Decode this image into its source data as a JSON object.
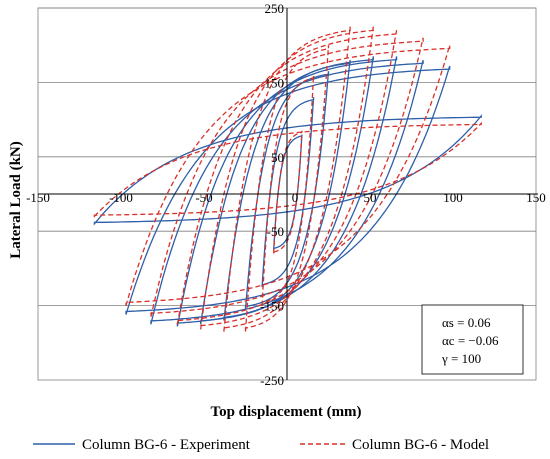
{
  "chart_data": {
    "type": "line",
    "xlabel": "Top displacement (mm)",
    "ylabel": "Lateral Load (kN)",
    "xlim": [
      -150,
      150
    ],
    "ylim": [
      -250,
      250
    ],
    "x_ticks": [
      "-150",
      "-100",
      "-50",
      "0",
      "50",
      "100",
      "150"
    ],
    "y_ticks": [
      "250",
      "150",
      "50",
      "-50",
      "-150",
      "-250"
    ],
    "grid": "horizontal",
    "legend_position": "bottom",
    "series": [
      {
        "name": "Column BG-6 - Experiment",
        "color": "#2e5fa8",
        "style": "solid",
        "cycles": [
          {
            "xmin": -8,
            "xmax": 9,
            "fmin": -75,
            "fmax": 80
          },
          {
            "xmin": -15,
            "xmax": 16,
            "fmin": -125,
            "fmax": 130
          },
          {
            "xmin": -25,
            "xmax": 25,
            "fmin": -155,
            "fmax": 165
          },
          {
            "xmin": -38,
            "xmax": 38,
            "fmin": -170,
            "fmax": 180
          },
          {
            "xmin": -52,
            "xmax": 52,
            "fmin": -175,
            "fmax": 185
          },
          {
            "xmin": -66,
            "xmax": 66,
            "fmin": -178,
            "fmax": 185
          },
          {
            "xmin": -82,
            "xmax": 82,
            "fmin": -175,
            "fmax": 180
          },
          {
            "xmin": -97,
            "xmax": 98,
            "fmin": -162,
            "fmax": 172
          },
          {
            "xmin": -116,
            "xmax": 117,
            "fmin": -40,
            "fmax": 105
          }
        ]
      },
      {
        "name": "Column BG-6 - Model",
        "color": "#d9302a",
        "style": "dashed",
        "cycles": [
          {
            "xmin": -8,
            "xmax": 9,
            "fmin": -80,
            "fmax": 85
          },
          {
            "xmin": -15,
            "xmax": 16,
            "fmin": -150,
            "fmax": 160
          },
          {
            "xmin": -25,
            "xmax": 25,
            "fmin": -185,
            "fmax": 200
          },
          {
            "xmin": -38,
            "xmax": 38,
            "fmin": -185,
            "fmax": 225
          },
          {
            "xmin": -52,
            "xmax": 52,
            "fmin": -182,
            "fmax": 225
          },
          {
            "xmin": -66,
            "xmax": 66,
            "fmin": -175,
            "fmax": 220
          },
          {
            "xmin": -82,
            "xmax": 82,
            "fmin": -165,
            "fmax": 210
          },
          {
            "xmin": -97,
            "xmax": 98,
            "fmin": -150,
            "fmax": 200
          },
          {
            "xmin": -116,
            "xmax": 117,
            "fmin": -30,
            "fmax": 95
          }
        ]
      }
    ],
    "annotation": [
      "αs = 0.06",
      "αc = −0.06",
      "γ = 100"
    ]
  }
}
